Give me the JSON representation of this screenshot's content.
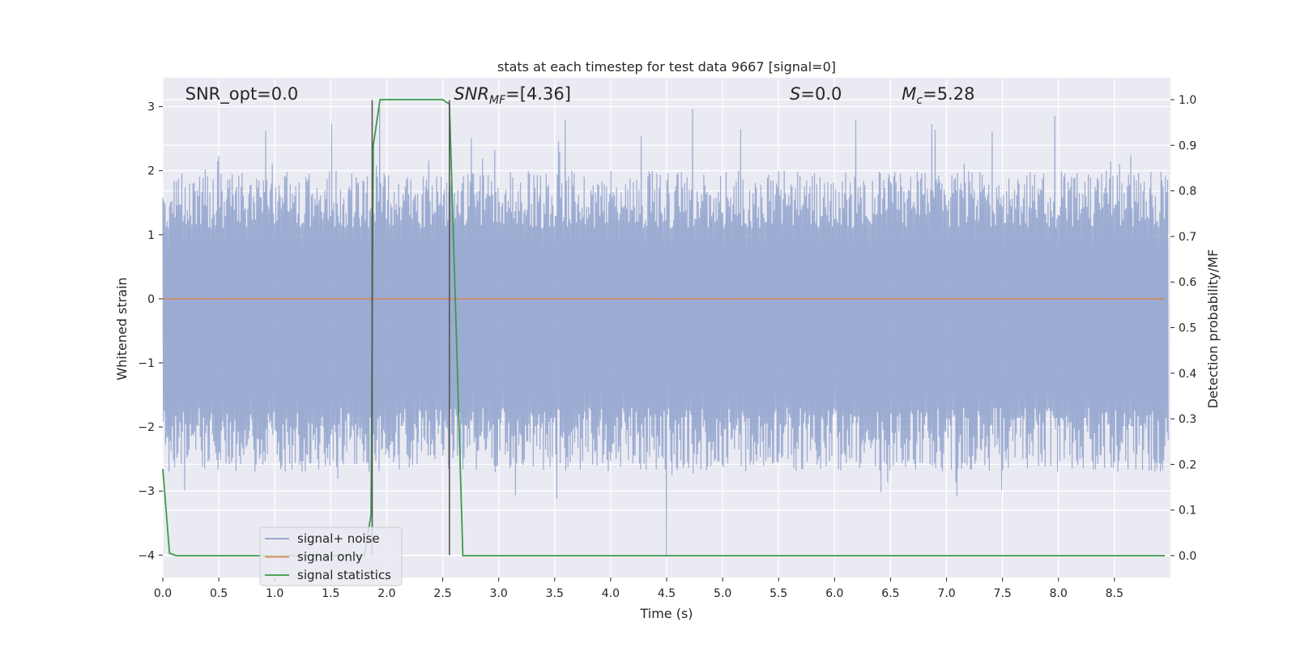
{
  "chart_data": {
    "type": "line",
    "title": "stats at each timestep for test data 9667 [signal=0]",
    "xlabel": "Time (s)",
    "ylabel": "Whitened strain",
    "y2label": "Detection probability/MF",
    "xlim": [
      0,
      9.0
    ],
    "ylim": [
      -4.35,
      3.45
    ],
    "y2lim": [
      -0.048,
      1.048
    ],
    "xticks": [
      0.0,
      0.5,
      1.0,
      1.5,
      2.0,
      2.5,
      3.0,
      3.5,
      4.0,
      4.5,
      5.0,
      5.5,
      6.0,
      6.5,
      7.0,
      7.5,
      8.0,
      8.5
    ],
    "xtick_labels": [
      "0.0",
      "0.5",
      "1.0",
      "1.5",
      "2.0",
      "2.5",
      "3.0",
      "3.5",
      "4.0",
      "4.5",
      "5.0",
      "5.5",
      "6.0",
      "6.5",
      "7.0",
      "7.5",
      "8.0",
      "8.5"
    ],
    "yticks": [
      -4,
      -3,
      -2,
      -1,
      0,
      1,
      2,
      3
    ],
    "ytick_labels": [
      "−4",
      "−3",
      "−2",
      "−1",
      "0",
      "1",
      "2",
      "3"
    ],
    "y2ticks": [
      0.0,
      0.1,
      0.2,
      0.3,
      0.4,
      0.5,
      0.6,
      0.7,
      0.8,
      0.9,
      1.0
    ],
    "y2tick_labels": [
      "0.0",
      "0.1",
      "0.2",
      "0.3",
      "0.4",
      "0.5",
      "0.6",
      "0.7",
      "0.8",
      "0.9",
      "1.0"
    ],
    "grid": true,
    "legend_position": "lower-left",
    "annotations": [
      {
        "text": "SNR_opt=0.0",
        "x": 0.2,
        "y": 3.2
      },
      {
        "text": "SNR_MF=[4.36]",
        "x": 2.6,
        "y": 3.2
      },
      {
        "text": "S=0.0",
        "x": 5.6,
        "y": 3.2
      },
      {
        "text": "M_c=5.28",
        "x": 6.6,
        "y": 3.2
      }
    ],
    "vlines": [
      {
        "x": 1.87,
        "y": [
          -4.0,
          3.1
        ]
      },
      {
        "x": 2.56,
        "y": [
          -4.0,
          3.1
        ]
      }
    ],
    "series": [
      {
        "name": "signal+ noise",
        "color": "#8da0cb",
        "axis": "left",
        "noise": {
          "samples": 1800,
          "t_end": 8.98,
          "typical_peak": [
            2.0,
            2.65
          ],
          "typical_trough": [
            -2.7,
            -1.7
          ],
          "max": 3.1,
          "min": -4.0
        }
      },
      {
        "name": "signal only",
        "color": "#dd8452",
        "axis": "left",
        "x": [
          0.0,
          8.95
        ],
        "y": [
          0.0,
          0.0
        ]
      },
      {
        "name": "signal statistics",
        "color": "#3d9a4a",
        "axis": "right",
        "x": [
          0.0,
          0.06,
          0.12,
          1.8,
          1.86,
          1.88,
          1.94,
          2.0,
          2.5,
          2.56,
          2.62,
          2.68,
          8.95
        ],
        "y": [
          0.19,
          0.005,
          0.0,
          0.0,
          0.09,
          0.9,
          1.0,
          1.0,
          1.0,
          0.99,
          0.5,
          0.0,
          0.0
        ]
      }
    ]
  },
  "colors": {
    "plot_background": "#eaeaf2",
    "grid": "#ffffff",
    "vline": "#555555",
    "legend_bg": "#eaeaf2",
    "legend_border": "#cccccc"
  }
}
